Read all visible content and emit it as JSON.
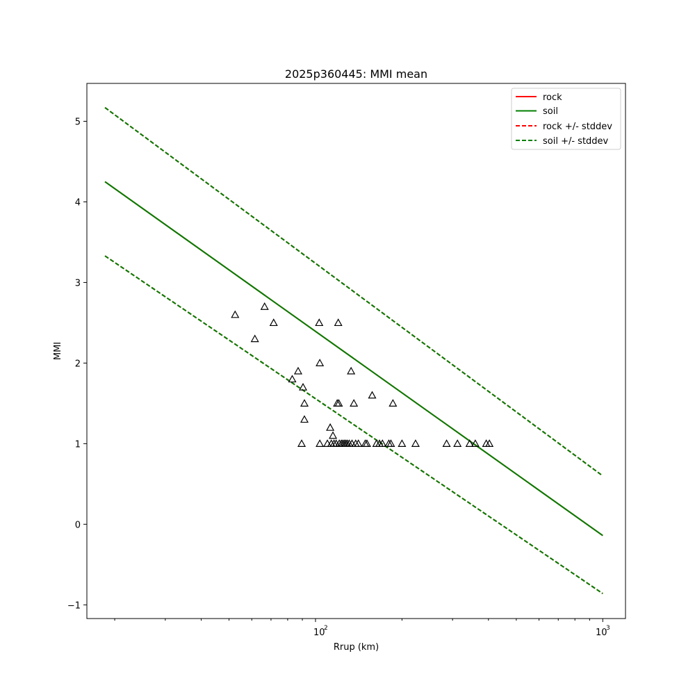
{
  "chart_data": {
    "type": "scatter",
    "title": "2025p360445: MMI mean",
    "xlabel": "Rrup (km)",
    "ylabel": "MMI",
    "xscale": "log",
    "xlim": [
      16,
      1200
    ],
    "ylim": [
      -1.17,
      5.47
    ],
    "x_tick_labels": [
      "10",
      "2",
      "10",
      "3"
    ],
    "x_ticks": [
      100,
      1000
    ],
    "y_ticks": [
      -1,
      0,
      1,
      2,
      3,
      4,
      5
    ],
    "grid": false,
    "legend_position": "top-right",
    "series": [
      {
        "name": "rock",
        "style": "solid",
        "color": "#ff0000",
        "x": [
          18.5,
          1000
        ],
        "y": [
          4.25,
          -0.14
        ]
      },
      {
        "name": "soil",
        "style": "solid",
        "color": "#007f00",
        "x": [
          18.5,
          1000
        ],
        "y": [
          4.25,
          -0.14
        ]
      },
      {
        "name": "rock +/- stddev",
        "style": "dashed",
        "color": "#ff0000",
        "x_upper": [
          18.5,
          1000
        ],
        "y_upper": [
          5.17,
          0.6
        ],
        "x_lower": [
          18.5,
          1000
        ],
        "y_lower": [
          3.33,
          -0.86
        ]
      },
      {
        "name": "soil +/- stddev",
        "style": "dashed",
        "color": "#007f00",
        "x_upper": [
          18.5,
          1000
        ],
        "y_upper": [
          5.17,
          0.6
        ],
        "x_lower": [
          18.5,
          1000
        ],
        "y_lower": [
          3.33,
          -0.86
        ]
      }
    ],
    "observations": {
      "marker": "triangle",
      "points": [
        [
          52.5,
          2.6
        ],
        [
          61.5,
          2.3
        ],
        [
          66.5,
          2.7
        ],
        [
          71.5,
          2.5
        ],
        [
          83,
          1.8
        ],
        [
          87,
          1.9
        ],
        [
          90.5,
          1.7
        ],
        [
          91.5,
          1.5
        ],
        [
          91.5,
          1.3
        ],
        [
          89.5,
          1.0
        ],
        [
          103,
          2.5
        ],
        [
          103.5,
          2.0
        ],
        [
          103.5,
          1.0
        ],
        [
          110,
          1.0
        ],
        [
          112.5,
          1.2
        ],
        [
          113.5,
          1.0
        ],
        [
          115,
          1.1
        ],
        [
          116,
          1.0
        ],
        [
          118,
          1.0
        ],
        [
          119,
          1.5
        ],
        [
          120,
          2.5
        ],
        [
          120.5,
          1.5
        ],
        [
          121,
          1.0
        ],
        [
          123,
          1.0
        ],
        [
          124.5,
          1.0
        ],
        [
          126,
          1.0
        ],
        [
          127.5,
          1.0
        ],
        [
          129,
          1.0
        ],
        [
          131,
          1.0
        ],
        [
          133,
          1.9
        ],
        [
          134,
          1.0
        ],
        [
          136,
          1.5
        ],
        [
          138,
          1.0
        ],
        [
          141,
          1.0
        ],
        [
          149,
          1.0
        ],
        [
          151,
          1.0
        ],
        [
          157.5,
          1.6
        ],
        [
          163,
          1.0
        ],
        [
          167,
          1.0
        ],
        [
          171,
          1.0
        ],
        [
          180,
          1.0
        ],
        [
          183,
          1.0
        ],
        [
          186,
          1.5
        ],
        [
          200,
          1.0
        ],
        [
          223,
          1.0
        ],
        [
          286,
          1.0
        ],
        [
          312,
          1.0
        ],
        [
          344,
          1.0
        ],
        [
          360,
          1.0
        ],
        [
          393,
          1.0
        ],
        [
          403,
          1.0
        ]
      ]
    }
  }
}
